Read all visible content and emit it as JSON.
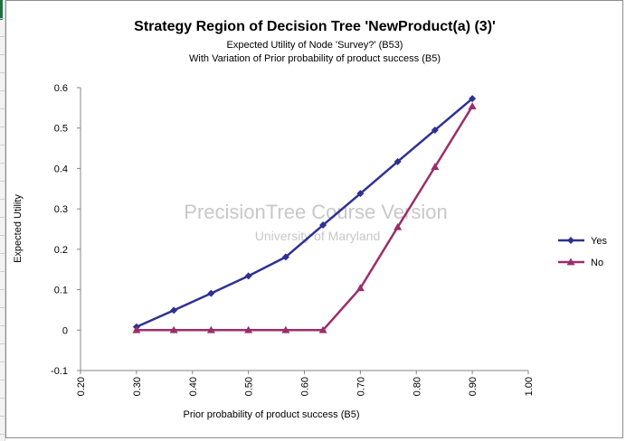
{
  "chart_data": {
    "type": "line",
    "title": "Strategy Region of Decision Tree 'NewProduct(a) (3)'",
    "subtitle_lines": [
      "Expected Utility of Node 'Survey?' (B53)",
      "With Variation of Prior probability of product success (B5)"
    ],
    "xlabel": "Prior probability of product success (B5)",
    "ylabel": "Expected Utility",
    "xlim": [
      0.2,
      1.0
    ],
    "ylim": [
      -0.1,
      0.6
    ],
    "x_ticks": [
      "0.20",
      "0.30",
      "0.40",
      "0.50",
      "0.60",
      "0.70",
      "0.80",
      "0.90",
      "1.00"
    ],
    "y_ticks": [
      "0.6",
      "0.5",
      "0.4",
      "0.3",
      "0.2",
      "0.1",
      "0",
      "-0.1"
    ],
    "grid": false,
    "legend_position": "right",
    "watermark": {
      "line1": "PrecisionTree Course Version",
      "line2": "University of Maryland"
    },
    "series": [
      {
        "name": "Yes",
        "color": "#2e3192",
        "marker": "diamond",
        "x": [
          0.3,
          0.3667,
          0.4333,
          0.5,
          0.5667,
          0.6333,
          0.7,
          0.7667,
          0.8333,
          0.9
        ],
        "values": [
          0.008,
          0.049,
          0.091,
          0.134,
          0.181,
          0.26,
          0.338,
          0.417,
          0.495,
          0.573
        ]
      },
      {
        "name": "No",
        "color": "#9b2d6a",
        "marker": "triangle",
        "x": [
          0.3,
          0.3667,
          0.4333,
          0.5,
          0.5667,
          0.6333,
          0.7,
          0.7667,
          0.8333,
          0.9
        ],
        "values": [
          0,
          0,
          0,
          0,
          0,
          0,
          0.104,
          0.255,
          0.404,
          0.554
        ]
      }
    ]
  }
}
